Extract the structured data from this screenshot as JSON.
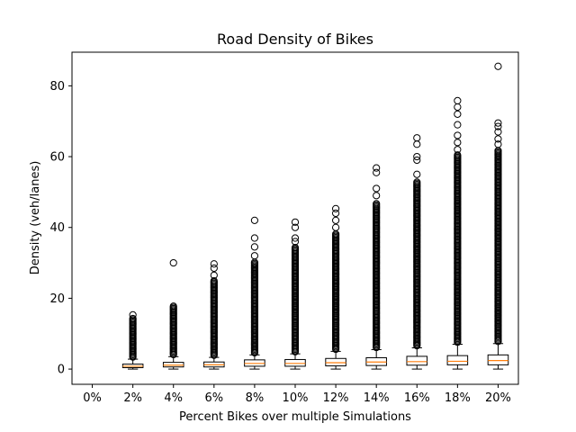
{
  "chart_data": {
    "type": "box",
    "title": "Road Density of Bikes",
    "xlabel": "Percent Bikes over multiple Simulations",
    "ylabel": "Density (veh/lanes)",
    "ylim": [
      -4.3,
      89.5
    ],
    "yticks": [
      0,
      20,
      40,
      60,
      80
    ],
    "categories": [
      "0%",
      "2%",
      "4%",
      "6%",
      "8%",
      "10%",
      "12%",
      "14%",
      "16%",
      "18%",
      "20%"
    ],
    "grid": false,
    "legend": "none",
    "colors": {
      "box": "#000000",
      "median": "#ff7f0e",
      "outlier": "#000000"
    },
    "boxes": [
      {
        "category": "0%",
        "empty": true
      },
      {
        "category": "2%",
        "whislo": 0,
        "q1": 0.4,
        "med": 0.8,
        "q3": 1.4,
        "whishi": 2.8,
        "outlier_range": [
          2.8,
          14.5
        ],
        "sparse_outliers": [
          15.3
        ]
      },
      {
        "category": "4%",
        "whislo": 0,
        "q1": 0.6,
        "med": 1.1,
        "q3": 1.9,
        "whishi": 3.5,
        "outlier_range": [
          3.5,
          18.0
        ],
        "sparse_outliers": [
          30.0
        ]
      },
      {
        "category": "6%",
        "whislo": 0,
        "q1": 0.6,
        "med": 1.2,
        "q3": 2.0,
        "whishi": 3.3,
        "outlier_range": [
          3.3,
          25.0
        ],
        "sparse_outliers": [
          26.5,
          28.5,
          29.7
        ]
      },
      {
        "category": "8%",
        "whislo": 0,
        "q1": 0.8,
        "med": 1.6,
        "q3": 2.6,
        "whishi": 4.0,
        "outlier_range": [
          4.0,
          30.5
        ],
        "sparse_outliers": [
          32.0,
          34.5,
          37.0,
          42.0
        ]
      },
      {
        "category": "10%",
        "whislo": 0,
        "q1": 0.8,
        "med": 1.6,
        "q3": 2.7,
        "whishi": 4.3,
        "outlier_range": [
          4.3,
          34.5
        ],
        "sparse_outliers": [
          36.0,
          37.0,
          40.0,
          41.5
        ]
      },
      {
        "category": "12%",
        "whislo": 0,
        "q1": 0.9,
        "med": 1.8,
        "q3": 3.0,
        "whishi": 5.0,
        "outlier_range": [
          5.0,
          38.5
        ],
        "sparse_outliers": [
          40.0,
          42.0,
          44.0,
          45.3
        ]
      },
      {
        "category": "14%",
        "whislo": 0,
        "q1": 1.0,
        "med": 2.0,
        "q3": 3.2,
        "whishi": 5.5,
        "outlier_range": [
          5.5,
          47.0
        ],
        "sparse_outliers": [
          49.0,
          51.0,
          55.5,
          56.8
        ]
      },
      {
        "category": "16%",
        "whislo": 0,
        "q1": 1.1,
        "med": 2.1,
        "q3": 3.6,
        "whishi": 6.0,
        "outlier_range": [
          6.0,
          53.0
        ],
        "sparse_outliers": [
          55.0,
          59.0,
          60.0,
          63.5,
          65.3
        ]
      },
      {
        "category": "18%",
        "whislo": 0,
        "q1": 1.2,
        "med": 2.2,
        "q3": 3.8,
        "whishi": 7.0,
        "outlier_range": [
          7.0,
          60.5
        ],
        "sparse_outliers": [
          62.0,
          64.0,
          66.0,
          69.0,
          72.0,
          74.0,
          75.8
        ]
      },
      {
        "category": "20%",
        "whislo": 0,
        "q1": 1.2,
        "med": 2.4,
        "q3": 4.0,
        "whishi": 7.2,
        "outlier_range": [
          7.2,
          62.0
        ],
        "sparse_outliers": [
          63.5,
          65.0,
          67.0,
          68.5,
          69.5,
          85.5
        ]
      }
    ]
  }
}
